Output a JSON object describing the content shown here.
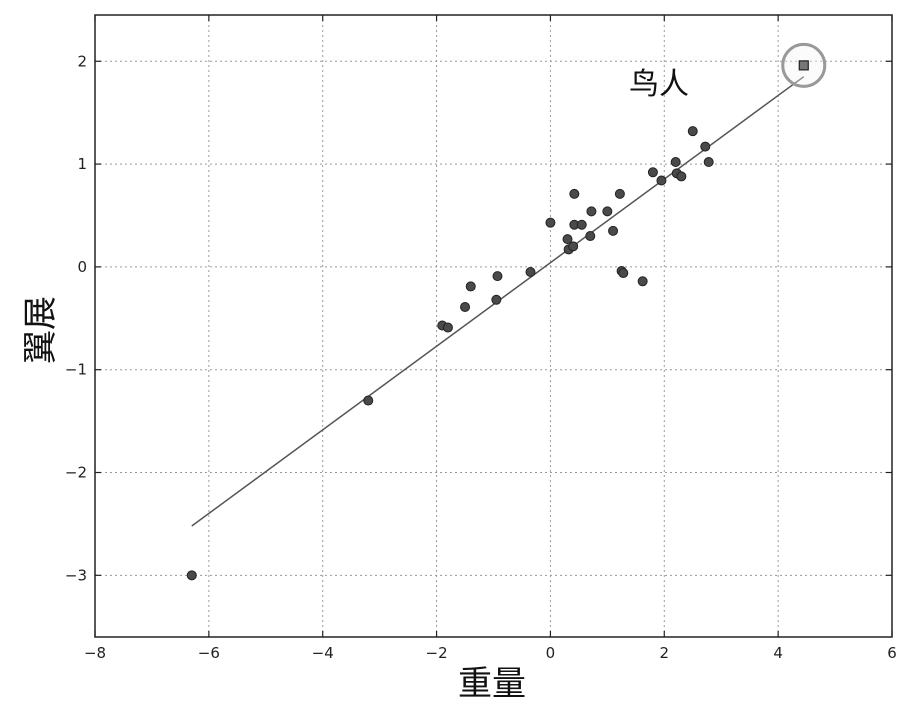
{
  "chart_data": {
    "type": "scatter",
    "title": "",
    "xlabel": "重量",
    "ylabel": "翼展",
    "xlim": [
      -8,
      6
    ],
    "ylim": [
      -3.6,
      2.45
    ],
    "x_ticks": [
      -8,
      -6,
      -4,
      -2,
      0,
      2,
      4,
      6
    ],
    "y_ticks": [
      -3,
      -2,
      -1,
      0,
      1,
      2
    ],
    "grid": true,
    "points": [
      {
        "x": -6.3,
        "y": -3.0
      },
      {
        "x": -3.2,
        "y": -1.3
      },
      {
        "x": -1.9,
        "y": -0.57
      },
      {
        "x": -1.8,
        "y": -0.59
      },
      {
        "x": -1.5,
        "y": -0.39
      },
      {
        "x": -1.4,
        "y": -0.19
      },
      {
        "x": -0.95,
        "y": -0.32
      },
      {
        "x": -0.93,
        "y": -0.09
      },
      {
        "x": -0.35,
        "y": -0.05
      },
      {
        "x": 0.0,
        "y": 0.43
      },
      {
        "x": 0.3,
        "y": 0.27
      },
      {
        "x": 0.32,
        "y": 0.17
      },
      {
        "x": 0.4,
        "y": 0.2
      },
      {
        "x": 0.42,
        "y": 0.41
      },
      {
        "x": 0.42,
        "y": 0.71
      },
      {
        "x": 0.55,
        "y": 0.41
      },
      {
        "x": 0.7,
        "y": 0.3
      },
      {
        "x": 0.72,
        "y": 0.54
      },
      {
        "x": 1.0,
        "y": 0.54
      },
      {
        "x": 1.1,
        "y": 0.35
      },
      {
        "x": 1.22,
        "y": 0.71
      },
      {
        "x": 1.25,
        "y": -0.04
      },
      {
        "x": 1.28,
        "y": -0.06
      },
      {
        "x": 1.62,
        "y": -0.14
      },
      {
        "x": 1.8,
        "y": 0.92
      },
      {
        "x": 1.95,
        "y": 0.84
      },
      {
        "x": 2.2,
        "y": 1.02
      },
      {
        "x": 2.22,
        "y": 0.91
      },
      {
        "x": 2.3,
        "y": 0.88
      },
      {
        "x": 2.5,
        "y": 1.32
      },
      {
        "x": 2.72,
        "y": 1.17
      },
      {
        "x": 2.78,
        "y": 1.02
      }
    ],
    "highlight": {
      "x": 4.45,
      "y": 1.96,
      "label": "鸟人"
    },
    "fit_line": {
      "x": [
        -6.3,
        4.45
      ],
      "y": [
        -2.52,
        1.85
      ]
    }
  }
}
